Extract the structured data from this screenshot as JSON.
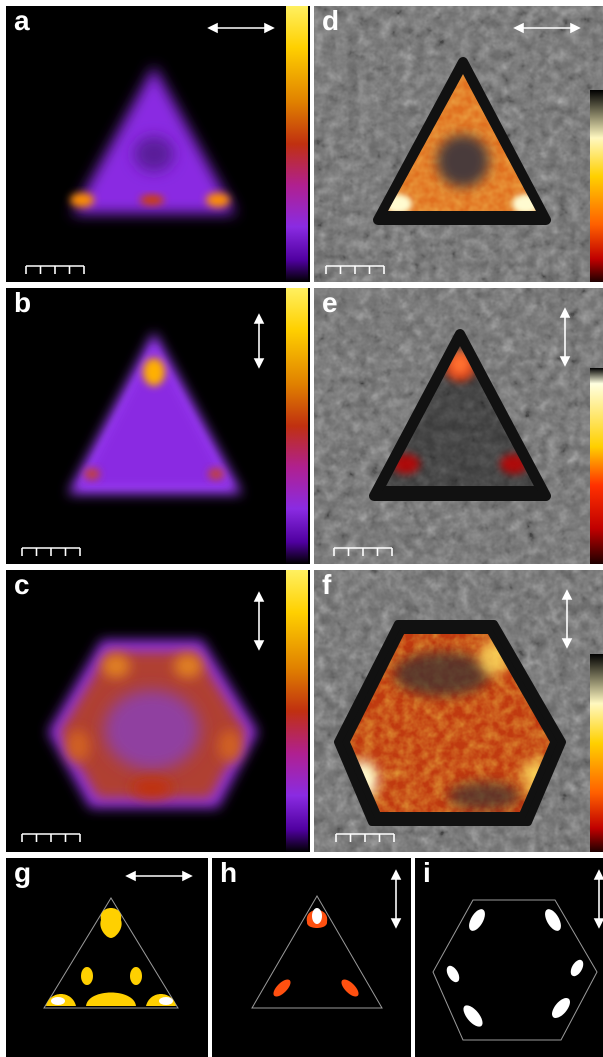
{
  "panels": {
    "a": {
      "label": "a",
      "polarization": "horizontal"
    },
    "b": {
      "label": "b",
      "polarization": "vertical"
    },
    "c": {
      "label": "c",
      "polarization": "vertical"
    },
    "d": {
      "label": "d",
      "polarization": "horizontal"
    },
    "e": {
      "label": "e",
      "polarization": "vertical"
    },
    "f": {
      "label": "f",
      "polarization": "vertical"
    },
    "g": {
      "label": "g",
      "polarization": "horizontal"
    },
    "h": {
      "label": "h",
      "polarization": "vertical"
    },
    "i": {
      "label": "i",
      "polarization": "vertical"
    }
  },
  "colors": {
    "purple": "#8a2be2",
    "violet_glow": "#a040ff",
    "orange": "#e07020",
    "yellow": "#ffd000",
    "red": "#d01010",
    "red_orange": "#ff5010",
    "white": "#ffffff",
    "background": "#000000"
  },
  "colormap_hot": [
    "#000000",
    "#6000a0",
    "#8a2be2",
    "#b02090",
    "#c03010",
    "#d06000",
    "#f0a000",
    "#ffd000",
    "#fff060"
  ],
  "colormap_red": [
    "#000000",
    "#600000",
    "#c00000",
    "#ff3000",
    "#ff9000",
    "#ffe000",
    "#ffffa0"
  ]
}
